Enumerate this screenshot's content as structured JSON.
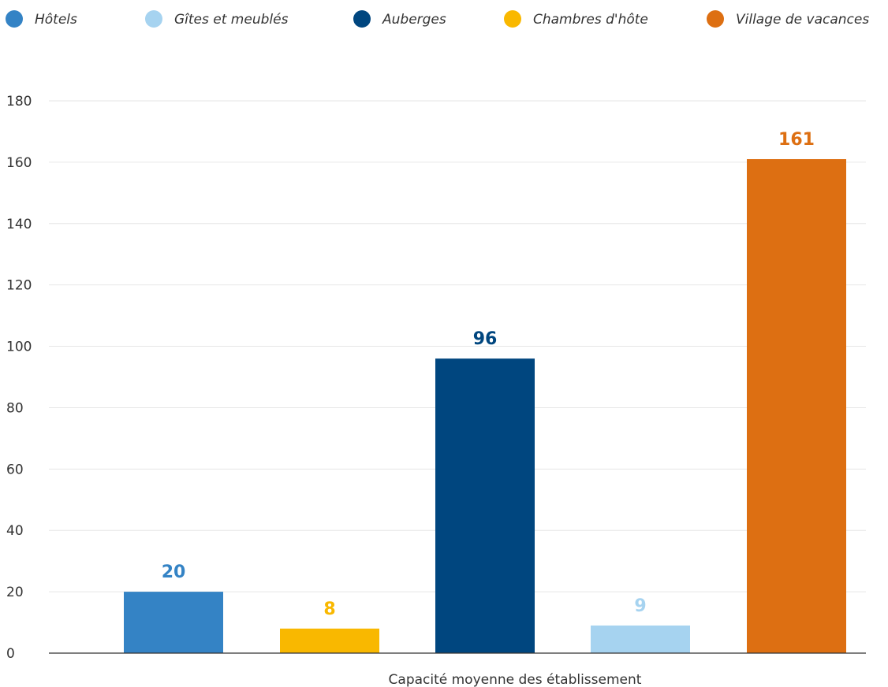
{
  "chart_data": {
    "type": "bar",
    "categories": [
      "Hôtels",
      "Chambres d'hôte",
      "Auberges",
      "Gîtes et meublés",
      "Village de vacances"
    ],
    "values": [
      20,
      8,
      96,
      9,
      161
    ],
    "value_labels": [
      "20",
      "8",
      "96",
      "9",
      "161"
    ],
    "colors": [
      "#3483c5",
      "#f9b800",
      "#00467f",
      "#a6d3f0",
      "#dd6f12"
    ],
    "legend": [
      {
        "label": "Hôtels",
        "color": "#3483c5"
      },
      {
        "label": "Gîtes et meublés",
        "color": "#a6d3f0"
      },
      {
        "label": "Auberges",
        "color": "#00467f"
      },
      {
        "label": "Chambres d'hôte",
        "color": "#f9b800"
      },
      {
        "label": "Village de vacances",
        "color": "#dd6f12"
      }
    ],
    "legend_position": "top",
    "xlabel": "Capacité moyenne des établissement",
    "ylabel": "",
    "ylim": [
      0,
      180
    ],
    "yticks": [
      "0",
      "20",
      "40",
      "60",
      "80",
      "100",
      "120",
      "140",
      "160",
      "180"
    ],
    "grid": true
  }
}
